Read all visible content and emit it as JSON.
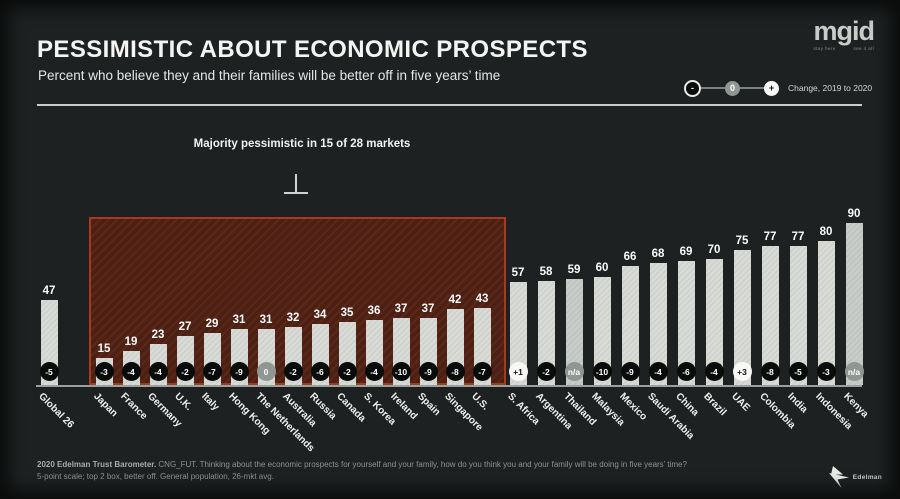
{
  "chart_data": {
    "type": "bar",
    "title": "PESSIMISTIC ABOUT ECONOMIC PROSPECTS",
    "subtitle": "Percent who believe they and their families will be better off in five years’ time",
    "annotation": "Majority pessimistic in 15 of 28 markets",
    "legend_label": "Change, 2019 to 2020",
    "legend_symbols": {
      "minus": "-",
      "zero": "0",
      "plus": "+"
    },
    "legend_position": "top-right",
    "grid": false,
    "xlabel": "",
    "ylabel": "",
    "ylim": [
      0,
      100
    ],
    "categories": [
      "Global 26",
      "Japan",
      "France",
      "Germany",
      "U.K.",
      "Italy",
      "Hong Kong",
      "The Netherlands",
      "Australia",
      "Russia",
      "Canada",
      "S. Korea",
      "Ireland",
      "Spain",
      "Singapore",
      "U.S.",
      "S. Africa",
      "Argentina",
      "Thailand",
      "Malaysia",
      "Mexico",
      "Saudi Arabia",
      "China",
      "Brazil",
      "UAE",
      "Colombia",
      "India",
      "Indonesia",
      "Kenya"
    ],
    "values": [
      47,
      15,
      19,
      23,
      27,
      29,
      31,
      31,
      32,
      34,
      35,
      36,
      37,
      37,
      42,
      43,
      57,
      58,
      59,
      60,
      66,
      68,
      69,
      70,
      75,
      77,
      77,
      80,
      90
    ],
    "changes": [
      "-5",
      "-3",
      "-4",
      "-4",
      "-2",
      "-7",
      "-9",
      "0",
      "-2",
      "-6",
      "-2",
      "-4",
      "-10",
      "-9",
      "-8",
      "-7",
      "+1",
      "-2",
      "n/a",
      "-10",
      "-9",
      "-4",
      "-6",
      "-4",
      "+3",
      "-8",
      "-5",
      "-3",
      "n/a"
    ],
    "highlight_range": [
      "Japan",
      "U.S."
    ]
  },
  "logo": {
    "name": "mgid",
    "tagline_left": "stay here",
    "tagline_right": "see it all"
  },
  "footer": {
    "source_bold": "2020 Edelman Trust Barometer.",
    "source_rest": " CNG_FUT. Thinking about the economic prospects for yourself and your family, how do you think you and your family will be doing in five years’ time?",
    "line2": "5-point scale; top 2 box, better off. General population, 26-mkt avg.",
    "brand": "Edelman"
  },
  "colors": {
    "background": "#1d2121",
    "bar": "#d8dad6",
    "bar_na": "#c7ccc8",
    "highlight_fill": "#4d2014",
    "highlight_border": "#a33b22",
    "badge_negative": "#0a0c0c",
    "badge_neutral": "#8f9793",
    "badge_positive": "#f8f9f7"
  }
}
